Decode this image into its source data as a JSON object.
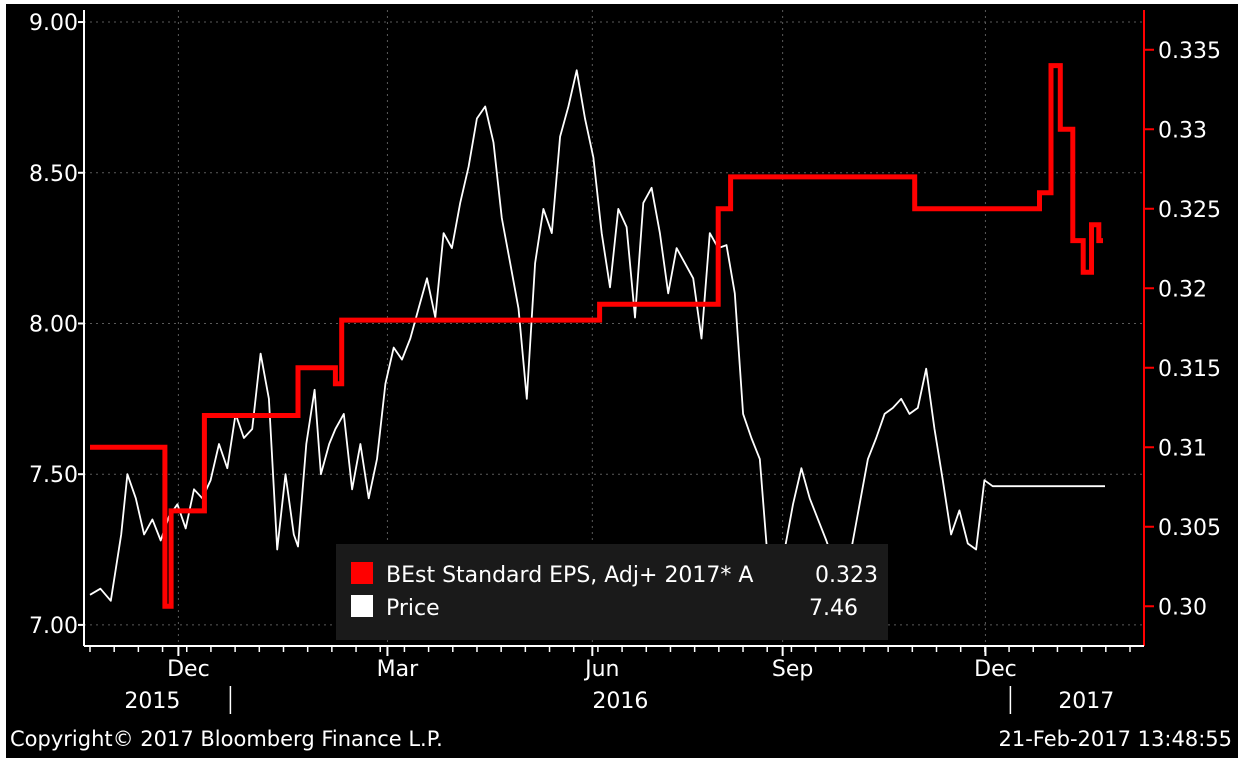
{
  "chart_data": {
    "type": "line",
    "title": "",
    "x_axis": {
      "ticks": [
        "Dec",
        "Mar",
        "Jun",
        "Sep",
        "Dec"
      ],
      "years": [
        "2015",
        "2016",
        "2017"
      ]
    },
    "left_axis": {
      "ylim": [
        6.93,
        9.04
      ],
      "ticks": [
        "7.00",
        "7.50",
        "8.00",
        "8.50",
        "9.00"
      ]
    },
    "right_axis": {
      "color": "#ff0000",
      "ylim": [
        0.2975,
        0.3375
      ],
      "ticks": [
        "0.30",
        "0.305",
        "0.31",
        "0.315",
        "0.32",
        "0.325",
        "0.33",
        "0.335"
      ]
    },
    "grid": true,
    "legend_position": "bottom-center",
    "series": [
      {
        "name": "BEst Standard EPS, Adj+ 2017* A",
        "last_value": "0.323",
        "color": "#ff0000",
        "axis": "right",
        "x": [
          0.0,
          0.072,
          0.072,
          0.078,
          0.078,
          0.11,
          0.11,
          0.2,
          0.2,
          0.236,
          0.236,
          0.242,
          0.242,
          0.49,
          0.49,
          0.604,
          0.604,
          0.616,
          0.616,
          0.624,
          0.624,
          0.793,
          0.793,
          0.913,
          0.913,
          0.924,
          0.924,
          0.933,
          0.933,
          0.945,
          0.945,
          0.955,
          0.955,
          0.963,
          0.963,
          0.97,
          0.97,
          0.974
        ],
        "values": [
          0.31,
          0.31,
          0.3,
          0.3,
          0.306,
          0.306,
          0.312,
          0.312,
          0.315,
          0.315,
          0.314,
          0.314,
          0.318,
          0.318,
          0.319,
          0.319,
          0.325,
          0.325,
          0.327,
          0.327,
          0.327,
          0.327,
          0.325,
          0.325,
          0.326,
          0.326,
          0.334,
          0.334,
          0.33,
          0.33,
          0.323,
          0.323,
          0.321,
          0.321,
          0.324,
          0.324,
          0.323,
          0.323
        ]
      },
      {
        "name": "Price",
        "last_value": "7.46",
        "color": "#ffffff",
        "axis": "left",
        "x": [
          0.0,
          0.01,
          0.02,
          0.03,
          0.036,
          0.044,
          0.052,
          0.06,
          0.068,
          0.076,
          0.084,
          0.092,
          0.1,
          0.108,
          0.116,
          0.124,
          0.132,
          0.14,
          0.148,
          0.156,
          0.164,
          0.172,
          0.18,
          0.188,
          0.196,
          0.2,
          0.208,
          0.216,
          0.222,
          0.23,
          0.236,
          0.244,
          0.252,
          0.26,
          0.268,
          0.276,
          0.284,
          0.292,
          0.3,
          0.308,
          0.316,
          0.324,
          0.332,
          0.34,
          0.348,
          0.356,
          0.364,
          0.372,
          0.38,
          0.388,
          0.396,
          0.404,
          0.412,
          0.42,
          0.428,
          0.436,
          0.444,
          0.452,
          0.46,
          0.468,
          0.476,
          0.484,
          0.492,
          0.5,
          0.508,
          0.516,
          0.524,
          0.532,
          0.54,
          0.548,
          0.556,
          0.564,
          0.572,
          0.58,
          0.588,
          0.596,
          0.604,
          0.612,
          0.62,
          0.628,
          0.636,
          0.644,
          0.652,
          0.66,
          0.668,
          0.676,
          0.684,
          0.692,
          0.7,
          0.708,
          0.716,
          0.724,
          0.732,
          0.74,
          0.748,
          0.756,
          0.764,
          0.772,
          0.78,
          0.788,
          0.796,
          0.804,
          0.812,
          0.82,
          0.828,
          0.836,
          0.844,
          0.852,
          0.86,
          0.868,
          0.876,
          0.884,
          0.892,
          0.9,
          0.908,
          0.916,
          0.924,
          0.932,
          0.94,
          0.948,
          0.956,
          0.964,
          0.972,
          0.976
        ],
        "values": [
          7.1,
          7.12,
          7.08,
          7.3,
          7.5,
          7.42,
          7.3,
          7.35,
          7.28,
          7.36,
          7.4,
          7.32,
          7.45,
          7.42,
          7.48,
          7.6,
          7.52,
          7.7,
          7.62,
          7.65,
          7.9,
          7.75,
          7.25,
          7.5,
          7.3,
          7.26,
          7.6,
          7.78,
          7.5,
          7.6,
          7.65,
          7.7,
          7.45,
          7.6,
          7.42,
          7.55,
          7.8,
          7.92,
          7.88,
          7.95,
          8.05,
          8.15,
          8.02,
          8.3,
          8.25,
          8.4,
          8.52,
          8.68,
          8.72,
          8.6,
          8.35,
          8.2,
          8.05,
          7.75,
          8.2,
          8.38,
          8.3,
          8.62,
          8.72,
          8.84,
          8.68,
          8.55,
          8.3,
          8.12,
          8.38,
          8.32,
          8.02,
          8.4,
          8.45,
          8.3,
          8.1,
          8.25,
          8.2,
          8.15,
          7.95,
          8.3,
          8.25,
          8.26,
          8.1,
          7.7,
          7.62,
          7.55,
          7.2,
          7.1,
          7.25,
          7.4,
          7.52,
          7.42,
          7.35,
          7.28,
          7.2,
          7.1,
          7.25,
          7.4,
          7.55,
          7.62,
          7.7,
          7.72,
          7.75,
          7.7,
          7.72,
          7.85,
          7.65,
          7.48,
          7.3,
          7.38,
          7.27,
          7.25,
          7.48,
          7.46,
          7.46,
          7.46,
          7.46,
          7.46,
          7.46,
          7.46,
          7.46,
          7.46,
          7.46,
          7.46,
          7.46,
          7.46,
          7.46,
          7.46
        ]
      }
    ]
  },
  "footer": {
    "copyright": "Copyright© 2017 Bloomberg Finance L.P.",
    "timestamp": "21-Feb-2017 13:48:55"
  }
}
